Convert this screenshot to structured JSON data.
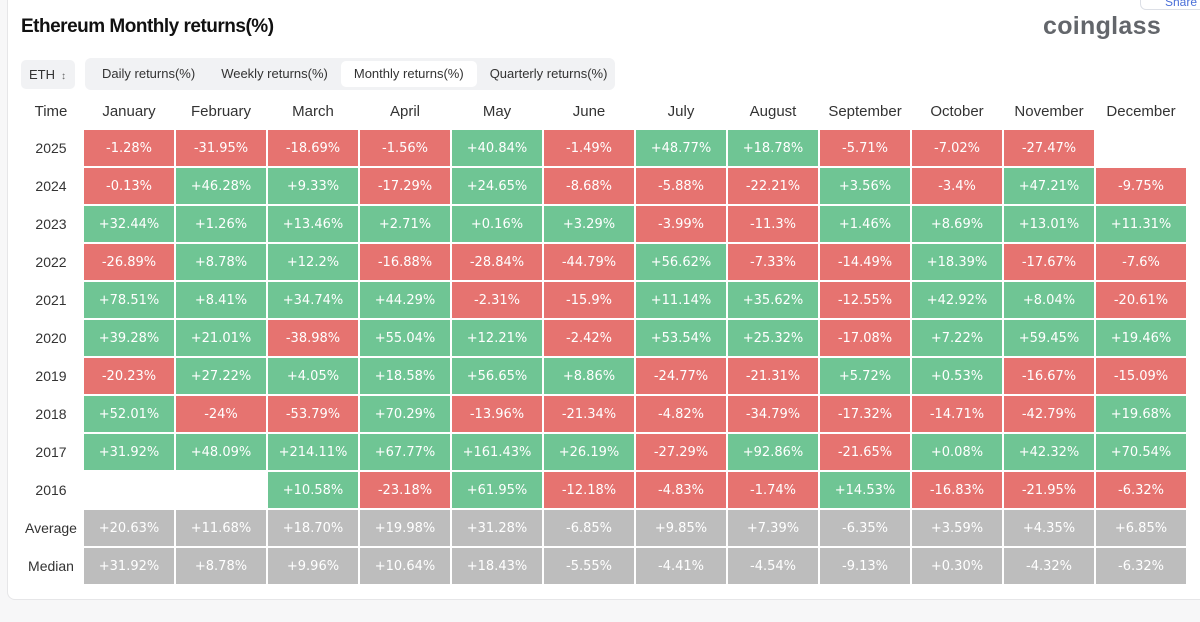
{
  "header": {
    "title": "Ethereum Monthly returns(%)",
    "logo": "coinglass",
    "share_label": "Share"
  },
  "controls": {
    "asset": "ETH",
    "tabs": [
      {
        "label": "Daily returns(%)",
        "active": false
      },
      {
        "label": "Weekly returns(%)",
        "active": false
      },
      {
        "label": "Monthly returns(%)",
        "active": true
      },
      {
        "label": "Quarterly returns(%)",
        "active": false
      }
    ]
  },
  "colors": {
    "positive": "#6fc594",
    "negative": "#e67370",
    "summary": "#bdbdbd"
  },
  "table": {
    "time_header": "Time",
    "months": [
      "January",
      "February",
      "March",
      "April",
      "May",
      "June",
      "July",
      "August",
      "September",
      "October",
      "November",
      "December"
    ],
    "rows": [
      {
        "year": "2025",
        "values": [
          "-1.28%",
          "-31.95%",
          "-18.69%",
          "-1.56%",
          "+40.84%",
          "-1.49%",
          "+48.77%",
          "+18.78%",
          "-5.71%",
          "-7.02%",
          "-27.47%",
          null
        ]
      },
      {
        "year": "2024",
        "values": [
          "-0.13%",
          "+46.28%",
          "+9.33%",
          "-17.29%",
          "+24.65%",
          "-8.68%",
          "-5.88%",
          "-22.21%",
          "+3.56%",
          "-3.4%",
          "+47.21%",
          "-9.75%"
        ]
      },
      {
        "year": "2023",
        "values": [
          "+32.44%",
          "+1.26%",
          "+13.46%",
          "+2.71%",
          "+0.16%",
          "+3.29%",
          "-3.99%",
          "-11.3%",
          "+1.46%",
          "+8.69%",
          "+13.01%",
          "+11.31%"
        ]
      },
      {
        "year": "2022",
        "values": [
          "-26.89%",
          "+8.78%",
          "+12.2%",
          "-16.88%",
          "-28.84%",
          "-44.79%",
          "+56.62%",
          "-7.33%",
          "-14.49%",
          "+18.39%",
          "-17.67%",
          "-7.6%"
        ]
      },
      {
        "year": "2021",
        "values": [
          "+78.51%",
          "+8.41%",
          "+34.74%",
          "+44.29%",
          "-2.31%",
          "-15.9%",
          "+11.14%",
          "+35.62%",
          "-12.55%",
          "+42.92%",
          "+8.04%",
          "-20.61%"
        ]
      },
      {
        "year": "2020",
        "values": [
          "+39.28%",
          "+21.01%",
          "-38.98%",
          "+55.04%",
          "+12.21%",
          "-2.42%",
          "+53.54%",
          "+25.32%",
          "-17.08%",
          "+7.22%",
          "+59.45%",
          "+19.46%"
        ]
      },
      {
        "year": "2019",
        "values": [
          "-20.23%",
          "+27.22%",
          "+4.05%",
          "+18.58%",
          "+56.65%",
          "+8.86%",
          "-24.77%",
          "-21.31%",
          "+5.72%",
          "+0.53%",
          "-16.67%",
          "-15.09%"
        ]
      },
      {
        "year": "2018",
        "values": [
          "+52.01%",
          "-24%",
          "-53.79%",
          "+70.29%",
          "-13.96%",
          "-21.34%",
          "-4.82%",
          "-34.79%",
          "-17.32%",
          "-14.71%",
          "-42.79%",
          "+19.68%"
        ]
      },
      {
        "year": "2017",
        "values": [
          "+31.92%",
          "+48.09%",
          "+214.11%",
          "+67.77%",
          "+161.43%",
          "+26.19%",
          "-27.29%",
          "+92.86%",
          "-21.65%",
          "+0.08%",
          "+42.32%",
          "+70.54%"
        ]
      },
      {
        "year": "2016",
        "values": [
          null,
          null,
          "+10.58%",
          "-23.18%",
          "+61.95%",
          "-12.18%",
          "-4.83%",
          "-1.74%",
          "+14.53%",
          "-16.83%",
          "-21.95%",
          "-6.32%"
        ]
      }
    ],
    "summary": [
      {
        "label": "Average",
        "values": [
          "+20.63%",
          "+11.68%",
          "+18.70%",
          "+19.98%",
          "+31.28%",
          "-6.85%",
          "+9.85%",
          "+7.39%",
          "-6.35%",
          "+3.59%",
          "+4.35%",
          "+6.85%"
        ]
      },
      {
        "label": "Median",
        "values": [
          "+31.92%",
          "+8.78%",
          "+9.96%",
          "+10.64%",
          "+18.43%",
          "-5.55%",
          "-4.41%",
          "-4.54%",
          "-9.13%",
          "+0.30%",
          "-4.32%",
          "-6.32%"
        ]
      }
    ]
  }
}
